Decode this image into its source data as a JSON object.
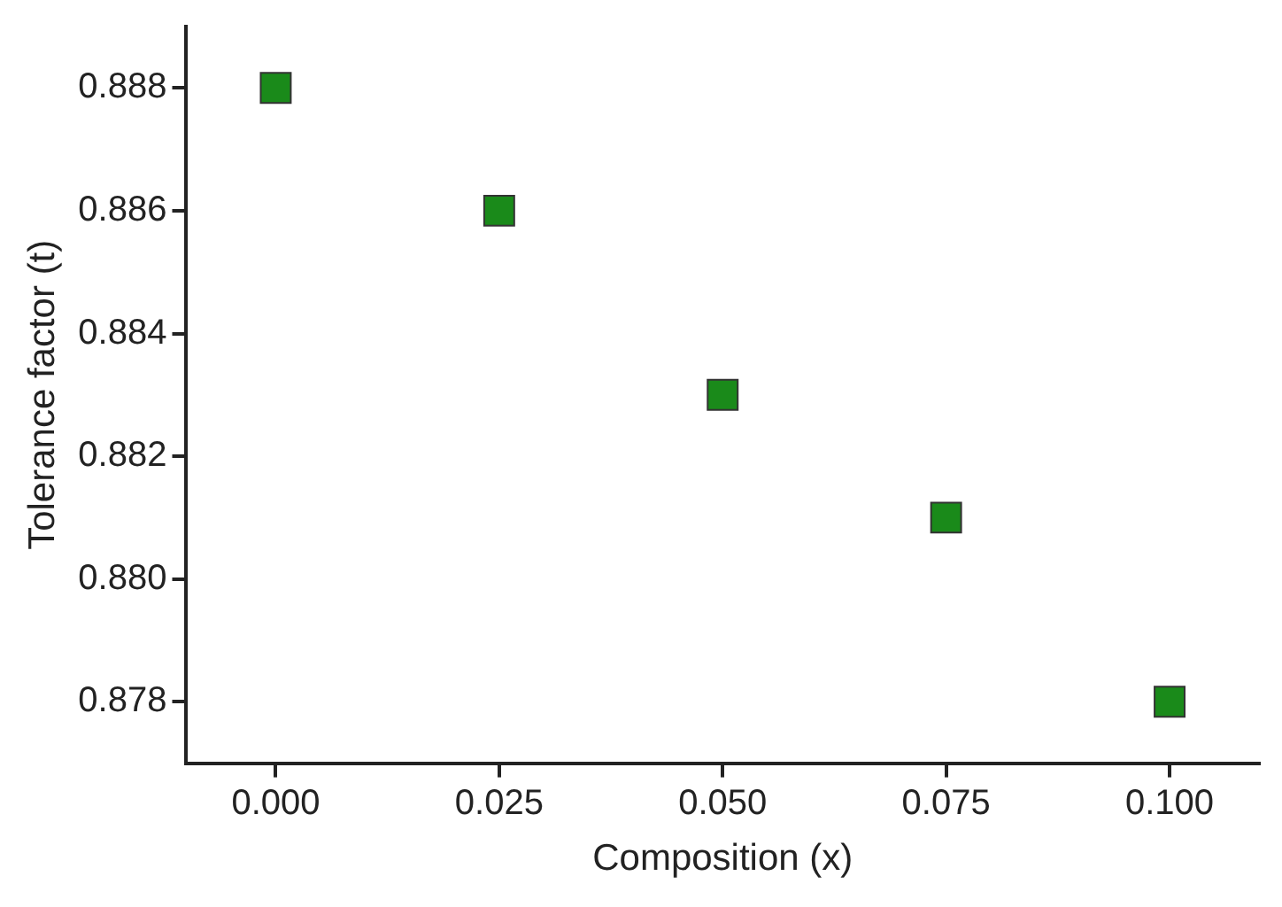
{
  "chart_data": {
    "type": "scatter",
    "xlabel": "Composition (x)",
    "ylabel": "Tolerance factor (t)",
    "x": [
      0.0,
      0.025,
      0.05,
      0.075,
      0.1
    ],
    "series": [
      {
        "color": "#1a8a1a",
        "values": [
          0.888,
          0.886,
          0.883,
          0.881,
          0.878
        ]
      }
    ],
    "xlim": [
      -0.01,
      0.11
    ],
    "xticks": [
      {
        "value": 0,
        "label": "0.000"
      },
      {
        "value": 0.025,
        "label": "0.025"
      },
      {
        "value": 0.05,
        "label": "0.050"
      },
      {
        "value": 0.075,
        "label": "0.075"
      },
      {
        "value": 0.1,
        "label": "0.100"
      }
    ],
    "ylim": [
      0.877,
      0.889
    ],
    "yticks": [
      {
        "value": 0.878,
        "label": "0.878"
      },
      {
        "value": 0.88,
        "label": "0.880"
      },
      {
        "value": 0.882,
        "label": "0.882"
      },
      {
        "value": 0.884,
        "label": "0.884"
      },
      {
        "value": 0.886,
        "label": "0.886"
      },
      {
        "value": 0.888,
        "label": "0.888"
      }
    ],
    "marker": "square",
    "grid": false,
    "legend": false
  }
}
